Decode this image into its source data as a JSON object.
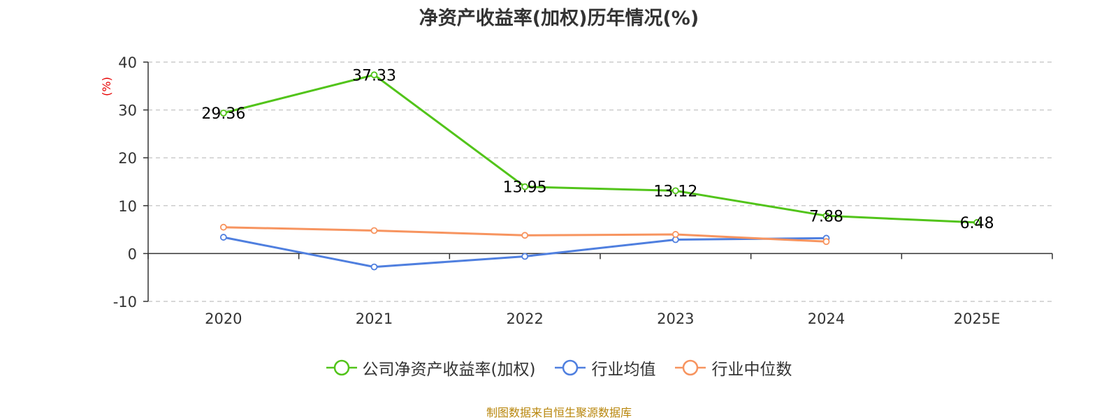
{
  "chart_data": {
    "type": "line",
    "title": "净资产收益率(加权)历年情况(%)",
    "ylabel": "(%)",
    "xlabel": "",
    "categories": [
      "2020",
      "2021",
      "2022",
      "2023",
      "2024",
      "2025E"
    ],
    "ylim": [
      -10,
      40
    ],
    "yticks": [
      -10,
      0,
      10,
      20,
      30,
      40
    ],
    "grid": true,
    "legend_position": "bottom",
    "series": [
      {
        "name": "公司净资产收益率(加权)",
        "color": "#52c41a",
        "values": [
          29.36,
          37.33,
          13.95,
          13.12,
          7.88,
          6.48
        ],
        "labels": [
          "29.36",
          "37.33",
          "13.95",
          "13.12",
          "7.88",
          "6.48"
        ],
        "show_labels": true
      },
      {
        "name": "行业均值",
        "color": "#4f7fdf",
        "values": [
          3.4,
          -2.8,
          -0.6,
          2.9,
          3.2,
          null
        ],
        "show_labels": false
      },
      {
        "name": "行业中位数",
        "color": "#f7945f",
        "values": [
          5.5,
          4.8,
          3.8,
          4.0,
          2.5,
          null
        ],
        "show_labels": false
      }
    ],
    "source": "制图数据来自恒生聚源数据库"
  }
}
